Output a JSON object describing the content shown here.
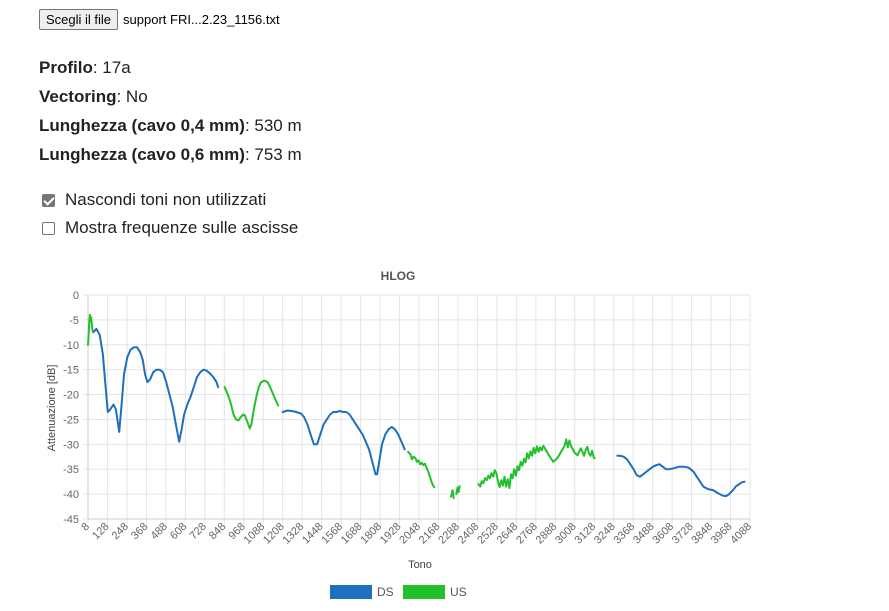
{
  "file_input": {
    "button_label": "Scegli il file",
    "file_name": "support FRI...2.23_1156.txt"
  },
  "info": [
    {
      "label": "Profilo",
      "value": "17a"
    },
    {
      "label": "Vectoring",
      "value": "No"
    },
    {
      "label": "Lunghezza (cavo 0,4 mm)",
      "value": "530 m"
    },
    {
      "label": "Lunghezza (cavo 0,6 mm)",
      "value": "753 m"
    }
  ],
  "options": [
    {
      "label": "Nascondi toni non utilizzati",
      "checked": true
    },
    {
      "label": "Mostra frequenze sulle ascisse",
      "checked": false
    }
  ],
  "colors": {
    "ds": "#1f6fbf",
    "us": "#22c02a",
    "grid": "#e5e5e5"
  },
  "chart_data": {
    "type": "line",
    "title": "HLOG",
    "xlabel": "Tono",
    "ylabel": "Attenuazione [dB]",
    "xlim": [
      8,
      4088
    ],
    "ylim": [
      -45,
      0
    ],
    "grid": true,
    "legend_position": "bottom",
    "x_ticks": [
      8,
      128,
      248,
      368,
      488,
      608,
      728,
      848,
      968,
      1088,
      1208,
      1328,
      1448,
      1568,
      1688,
      1808,
      1928,
      2048,
      2168,
      2288,
      2408,
      2528,
      2648,
      2768,
      2888,
      3008,
      3128,
      3248,
      3368,
      3488,
      3608,
      3728,
      3848,
      3968,
      4088
    ],
    "y_ticks": [
      0,
      -5,
      -10,
      -15,
      -20,
      -25,
      -30,
      -35,
      -40,
      -45
    ],
    "series": [
      {
        "name": "DS",
        "color": "#1f6fbf",
        "segments": [
          [
            [
              40,
              -7.5
            ],
            [
              60,
              -6.8
            ],
            [
              80,
              -8
            ],
            [
              100,
              -12
            ],
            [
              115,
              -18
            ],
            [
              130,
              -23.5
            ],
            [
              145,
              -23
            ],
            [
              165,
              -22
            ],
            [
              180,
              -23
            ],
            [
              200,
              -27.5
            ],
            [
              215,
              -22
            ],
            [
              230,
              -16
            ],
            [
              250,
              -12.5
            ],
            [
              270,
              -11
            ],
            [
              290,
              -10.5
            ],
            [
              310,
              -10.5
            ],
            [
              330,
              -11.5
            ],
            [
              345,
              -13
            ],
            [
              360,
              -16
            ],
            [
              375,
              -17.5
            ],
            [
              390,
              -17
            ],
            [
              410,
              -15.5
            ],
            [
              430,
              -15
            ],
            [
              450,
              -15
            ],
            [
              470,
              -15.5
            ],
            [
              490,
              -17.5
            ],
            [
              510,
              -20
            ],
            [
              530,
              -22.5
            ],
            [
              550,
              -26
            ],
            [
              570,
              -29.5
            ],
            [
              585,
              -27
            ],
            [
              600,
              -24
            ],
            [
              620,
              -22
            ],
            [
              640,
              -20.5
            ],
            [
              660,
              -18.5
            ],
            [
              680,
              -16.5
            ],
            [
              700,
              -15.5
            ],
            [
              720,
              -15
            ],
            [
              740,
              -15.2
            ],
            [
              760,
              -15.8
            ],
            [
              780,
              -16.5
            ],
            [
              800,
              -17.5
            ],
            [
              810,
              -18.5
            ]
          ],
          [
            [
              1208,
              -23.5
            ],
            [
              1240,
              -23.2
            ],
            [
              1280,
              -23.4
            ],
            [
              1320,
              -23.8
            ],
            [
              1340,
              -24.5
            ],
            [
              1360,
              -26
            ],
            [
              1380,
              -28
            ],
            [
              1400,
              -30
            ],
            [
              1420,
              -30
            ],
            [
              1440,
              -28
            ],
            [
              1460,
              -26
            ],
            [
              1480,
              -25
            ],
            [
              1500,
              -24
            ],
            [
              1520,
              -23.5
            ],
            [
              1540,
              -23.5
            ],
            [
              1560,
              -23.3
            ],
            [
              1580,
              -23.5
            ],
            [
              1600,
              -23.5
            ],
            [
              1620,
              -24
            ],
            [
              1640,
              -25
            ],
            [
              1660,
              -26
            ],
            [
              1680,
              -27
            ],
            [
              1700,
              -28
            ],
            [
              1720,
              -29.5
            ],
            [
              1740,
              -31
            ],
            [
              1760,
              -33.5
            ],
            [
              1780,
              -36
            ],
            [
              1790,
              -36
            ],
            [
              1800,
              -34
            ],
            [
              1820,
              -30
            ],
            [
              1840,
              -28
            ],
            [
              1860,
              -27
            ],
            [
              1880,
              -26.5
            ],
            [
              1900,
              -27
            ],
            [
              1920,
              -28
            ],
            [
              1940,
              -29.5
            ],
            [
              1960,
              -31
            ]
          ],
          [
            [
              3270,
              -32.3
            ],
            [
              3290,
              -32.3
            ],
            [
              3310,
              -32.5
            ],
            [
              3330,
              -33
            ],
            [
              3350,
              -34
            ],
            [
              3370,
              -35
            ],
            [
              3390,
              -36.2
            ],
            [
              3410,
              -36.5
            ],
            [
              3430,
              -36
            ],
            [
              3450,
              -35.5
            ],
            [
              3470,
              -35
            ],
            [
              3490,
              -34.5
            ],
            [
              3510,
              -34.2
            ],
            [
              3530,
              -34
            ],
            [
              3550,
              -34.5
            ],
            [
              3570,
              -35
            ],
            [
              3590,
              -35
            ],
            [
              3620,
              -34.8
            ],
            [
              3650,
              -34.5
            ],
            [
              3680,
              -34.5
            ],
            [
              3710,
              -34.7
            ],
            [
              3740,
              -35.5
            ],
            [
              3770,
              -37
            ],
            [
              3800,
              -38.5
            ],
            [
              3830,
              -39
            ],
            [
              3860,
              -39.2
            ],
            [
              3890,
              -39.8
            ],
            [
              3920,
              -40.3
            ],
            [
              3940,
              -40.4
            ],
            [
              3960,
              -40
            ],
            [
              3980,
              -39.3
            ],
            [
              4000,
              -38.5
            ],
            [
              4020,
              -38
            ],
            [
              4040,
              -37.6
            ],
            [
              4055,
              -37.5
            ]
          ]
        ]
      },
      {
        "name": "US",
        "color": "#22c02a",
        "segments": [
          [
            [
              8,
              -10
            ],
            [
              12,
              -8
            ],
            [
              16,
              -5.5
            ],
            [
              20,
              -4
            ],
            [
              24,
              -5.2
            ],
            [
              28,
              -4.5
            ],
            [
              32,
              -6
            ],
            [
              36,
              -7.2
            ]
          ],
          [
            [
              850,
              -18.5
            ],
            [
              870,
              -20
            ],
            [
              890,
              -22
            ],
            [
              905,
              -24
            ],
            [
              920,
              -25
            ],
            [
              935,
              -25.2
            ],
            [
              950,
              -24.5
            ],
            [
              965,
              -24
            ],
            [
              975,
              -24.2
            ],
            [
              990,
              -25.5
            ],
            [
              1005,
              -26.8
            ],
            [
              1015,
              -26
            ],
            [
              1030,
              -23
            ],
            [
              1045,
              -20.5
            ],
            [
              1060,
              -18.5
            ],
            [
              1075,
              -17.5
            ],
            [
              1095,
              -17.2
            ],
            [
              1115,
              -17.5
            ],
            [
              1130,
              -18.5
            ],
            [
              1150,
              -20
            ],
            [
              1170,
              -21.5
            ],
            [
              1180,
              -22.2
            ]
          ],
          [
            [
              1980,
              -31.5
            ],
            [
              1995,
              -32
            ],
            [
              2005,
              -33
            ],
            [
              2015,
              -32.5
            ],
            [
              2025,
              -32.7
            ],
            [
              2035,
              -33.5
            ],
            [
              2045,
              -33.2
            ],
            [
              2055,
              -34
            ],
            [
              2065,
              -33.7
            ],
            [
              2075,
              -34.2
            ],
            [
              2085,
              -33.9
            ],
            [
              2095,
              -34.7
            ],
            [
              2105,
              -35.5
            ],
            [
              2115,
              -36.5
            ],
            [
              2125,
              -37.5
            ],
            [
              2135,
              -38.3
            ],
            [
              2142,
              -38.6
            ]
          ],
          [
            [
              2245,
              -40.5
            ],
            [
              2255,
              -39.2
            ],
            [
              2262,
              -40.8
            ]
          ],
          [
            [
              2278,
              -40
            ],
            [
              2285,
              -38.7
            ],
            [
              2292,
              -39.6
            ],
            [
              2298,
              -38.4
            ]
          ],
          [
            [
              2415,
              -38
            ],
            [
              2425,
              -38.5
            ],
            [
              2435,
              -37.4
            ],
            [
              2445,
              -37.8
            ],
            [
              2455,
              -36.8
            ],
            [
              2465,
              -37.2
            ],
            [
              2475,
              -36.3
            ],
            [
              2485,
              -36.8
            ],
            [
              2495,
              -35.8
            ],
            [
              2505,
              -36.5
            ],
            [
              2515,
              -35.2
            ],
            [
              2525,
              -35.8
            ],
            [
              2535,
              -37.5
            ],
            [
              2545,
              -38.6
            ],
            [
              2555,
              -37.2
            ],
            [
              2565,
              -38.3
            ],
            [
              2575,
              -36.5
            ],
            [
              2585,
              -38.5
            ],
            [
              2595,
              -37
            ],
            [
              2605,
              -38.8
            ],
            [
              2615,
              -36
            ],
            [
              2625,
              -36.8
            ],
            [
              2635,
              -35
            ],
            [
              2645,
              -36.3
            ],
            [
              2655,
              -34.4
            ],
            [
              2665,
              -35.2
            ],
            [
              2675,
              -33.5
            ],
            [
              2685,
              -34.3
            ],
            [
              2695,
              -32.9
            ],
            [
              2705,
              -33.6
            ],
            [
              2715,
              -31.8
            ],
            [
              2725,
              -32.8
            ],
            [
              2735,
              -31.4
            ],
            [
              2745,
              -32.3
            ],
            [
              2755,
              -30.7
            ],
            [
              2765,
              -31.8
            ],
            [
              2775,
              -30.4
            ],
            [
              2785,
              -31.5
            ],
            [
              2795,
              -30.6
            ],
            [
              2805,
              -31.2
            ],
            [
              2815,
              -30.3
            ],
            [
              2825,
              -30.9
            ],
            [
              2835,
              -31.4
            ],
            [
              2845,
              -32
            ],
            [
              2855,
              -32.5
            ],
            [
              2865,
              -33
            ],
            [
              2875,
              -33.5
            ],
            [
              2885,
              -33.2
            ],
            [
              2895,
              -33
            ],
            [
              2905,
              -32.5
            ],
            [
              2915,
              -32
            ],
            [
              2925,
              -31.4
            ],
            [
              2935,
              -30.9
            ],
            [
              2945,
              -30.3
            ],
            [
              2955,
              -29
            ],
            [
              2965,
              -30.6
            ],
            [
              2975,
              -29.2
            ],
            [
              2985,
              -30.4
            ],
            [
              2995,
              -30.9
            ],
            [
              3005,
              -31.6
            ],
            [
              3015,
              -31.9
            ],
            [
              3025,
              -32.2
            ],
            [
              3035,
              -31.5
            ],
            [
              3045,
              -30.8
            ],
            [
              3055,
              -31.5
            ],
            [
              3065,
              -32.3
            ],
            [
              3075,
              -31.2
            ],
            [
              3085,
              -30.5
            ],
            [
              3095,
              -31.8
            ],
            [
              3105,
              -32.3
            ],
            [
              3115,
              -31.3
            ],
            [
              3125,
              -32.6
            ],
            [
              3130,
              -32.8
            ]
          ]
        ]
      }
    ]
  }
}
